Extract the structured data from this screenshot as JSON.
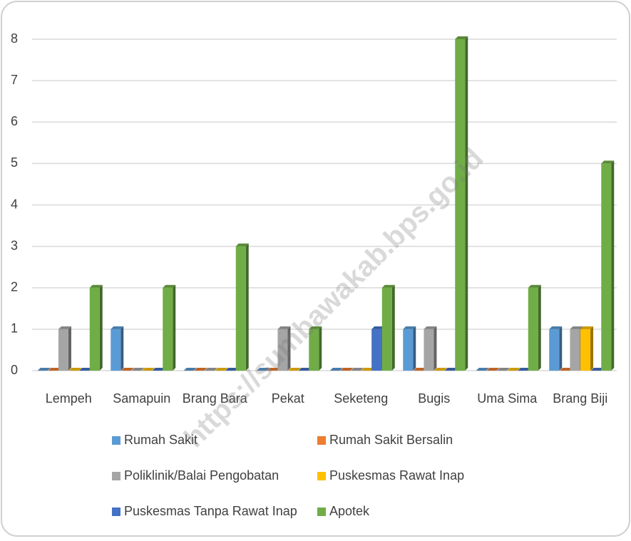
{
  "chart_data": {
    "type": "bar",
    "categories": [
      "Lempeh",
      "Samapuin",
      "Brang Bara",
      "Pekat",
      "Seketeng",
      "Bugis",
      "Uma Sima",
      "Brang Biji"
    ],
    "series": [
      {
        "name": "Rumah Sakit",
        "color": "#5b9bd5",
        "values": [
          0,
          1,
          0,
          0,
          0,
          1,
          0,
          1
        ]
      },
      {
        "name": "Rumah Sakit Bersalin",
        "color": "#ed7d31",
        "values": [
          0,
          0,
          0,
          0,
          0,
          0,
          0,
          0
        ]
      },
      {
        "name": "Poliklinik/Balai Pengobatan",
        "color": "#a5a5a5",
        "values": [
          1,
          0,
          0,
          1,
          0,
          1,
          0,
          1
        ]
      },
      {
        "name": "Puskesmas Rawat Inap",
        "color": "#ffc000",
        "values": [
          0,
          0,
          0,
          0,
          0,
          0,
          0,
          1
        ]
      },
      {
        "name": "Puskesmas Tanpa Rawat Inap",
        "color": "#4472c4",
        "values": [
          0,
          0,
          0,
          0,
          1,
          0,
          0,
          0
        ]
      },
      {
        "name": "Apotek",
        "color": "#70ad47",
        "values": [
          2,
          2,
          3,
          1,
          2,
          8,
          2,
          5
        ]
      }
    ],
    "ylim": [
      0,
      8
    ],
    "yticks": [
      0,
      1,
      2,
      3,
      4,
      5,
      6,
      7,
      8
    ],
    "grid": true,
    "legend": "bottom",
    "watermark": "https://sumbawakab.bps.go.id"
  }
}
